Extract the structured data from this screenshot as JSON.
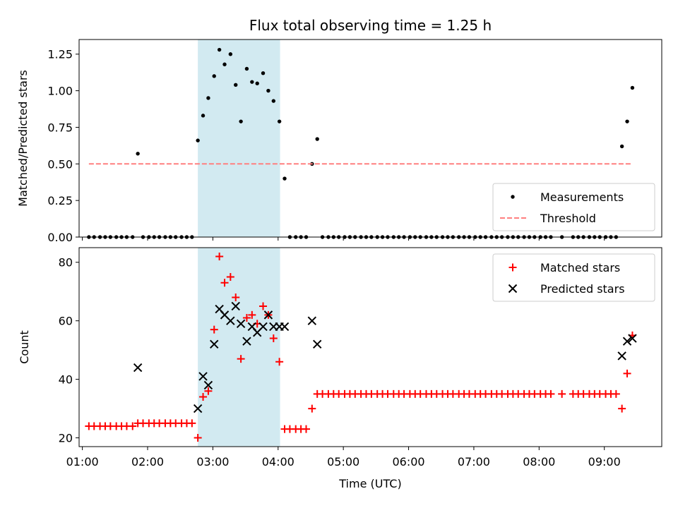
{
  "chart_data": {
    "type": "scatter",
    "title": "Flux total observing time = 1.25 h",
    "xlabel": "Time (UTC)",
    "x_unit": "hours (UTC)",
    "xlim": [
      0.95,
      9.88
    ],
    "x_ticks": [
      1,
      2,
      3,
      4,
      5,
      6,
      7,
      8,
      9
    ],
    "x_tick_labels": [
      "01:00",
      "02:00",
      "03:00",
      "04:00",
      "05:00",
      "06:00",
      "07:00",
      "08:00",
      "09:00"
    ],
    "shaded_region": {
      "x": [
        2.77,
        4.03
      ],
      "color": "#add8e6"
    },
    "panels": [
      {
        "name": "ratio",
        "ylabel": "Matched/Predicted stars",
        "ylim": [
          0,
          1.35
        ],
        "y_ticks": [
          0,
          0.25,
          0.5,
          0.75,
          1.0,
          1.25
        ],
        "y_tick_labels": [
          "0.00",
          "0.25",
          "0.50",
          "0.75",
          "1.00",
          "1.25"
        ],
        "legend": {
          "position": "lower right",
          "entries": [
            "Measurements",
            "Threshold"
          ]
        },
        "series": [
          {
            "name": "Measurements",
            "marker": "dot",
            "color": "#000000",
            "points": [
              [
                1.1,
                0
              ],
              [
                1.18,
                0
              ],
              [
                1.27,
                0
              ],
              [
                1.35,
                0
              ],
              [
                1.43,
                0
              ],
              [
                1.52,
                0
              ],
              [
                1.6,
                0
              ],
              [
                1.68,
                0
              ],
              [
                1.77,
                0
              ],
              [
                1.85,
                0.57
              ],
              [
                1.93,
                0
              ],
              [
                2.02,
                0
              ],
              [
                2.1,
                0
              ],
              [
                2.18,
                0
              ],
              [
                2.27,
                0
              ],
              [
                2.35,
                0
              ],
              [
                2.43,
                0
              ],
              [
                2.52,
                0
              ],
              [
                2.6,
                0
              ],
              [
                2.68,
                0
              ],
              [
                2.77,
                0.66
              ],
              [
                2.85,
                0.83
              ],
              [
                2.93,
                0.95
              ],
              [
                3.02,
                1.1
              ],
              [
                3.1,
                1.28
              ],
              [
                3.18,
                1.18
              ],
              [
                3.27,
                1.25
              ],
              [
                3.35,
                1.04
              ],
              [
                3.43,
                0.79
              ],
              [
                3.52,
                1.15
              ],
              [
                3.6,
                1.06
              ],
              [
                3.68,
                1.05
              ],
              [
                3.77,
                1.12
              ],
              [
                3.85,
                1.0
              ],
              [
                3.93,
                0.93
              ],
              [
                4.02,
                0.79
              ],
              [
                4.1,
                0.4
              ],
              [
                4.18,
                0
              ],
              [
                4.27,
                0
              ],
              [
                4.35,
                0
              ],
              [
                4.43,
                0
              ],
              [
                4.52,
                0.5
              ],
              [
                4.6,
                0.67
              ],
              [
                4.68,
                0
              ],
              [
                4.77,
                0
              ],
              [
                4.85,
                0
              ],
              [
                4.93,
                0
              ],
              [
                5.02,
                0
              ],
              [
                5.1,
                0
              ],
              [
                5.18,
                0
              ],
              [
                5.27,
                0
              ],
              [
                5.35,
                0
              ],
              [
                5.43,
                0
              ],
              [
                5.52,
                0
              ],
              [
                5.6,
                0
              ],
              [
                5.68,
                0
              ],
              [
                5.77,
                0
              ],
              [
                5.85,
                0
              ],
              [
                5.93,
                0
              ],
              [
                6.02,
                0
              ],
              [
                6.1,
                0
              ],
              [
                6.18,
                0
              ],
              [
                6.27,
                0
              ],
              [
                6.35,
                0
              ],
              [
                6.43,
                0
              ],
              [
                6.52,
                0
              ],
              [
                6.6,
                0
              ],
              [
                6.68,
                0
              ],
              [
                6.77,
                0
              ],
              [
                6.85,
                0
              ],
              [
                6.93,
                0
              ],
              [
                7.02,
                0
              ],
              [
                7.1,
                0
              ],
              [
                7.18,
                0
              ],
              [
                7.27,
                0
              ],
              [
                7.35,
                0
              ],
              [
                7.43,
                0
              ],
              [
                7.52,
                0
              ],
              [
                7.6,
                0
              ],
              [
                7.68,
                0
              ],
              [
                7.77,
                0
              ],
              [
                7.85,
                0
              ],
              [
                7.93,
                0
              ],
              [
                8.02,
                0
              ],
              [
                8.1,
                0
              ],
              [
                8.18,
                0
              ],
              [
                8.35,
                0
              ],
              [
                8.52,
                0
              ],
              [
                8.6,
                0
              ],
              [
                8.68,
                0
              ],
              [
                8.77,
                0
              ],
              [
                8.85,
                0
              ],
              [
                8.93,
                0
              ],
              [
                9.02,
                0
              ],
              [
                9.1,
                0
              ],
              [
                9.18,
                0
              ],
              [
                9.27,
                0.62
              ],
              [
                9.35,
                0.79
              ],
              [
                9.43,
                1.02
              ]
            ]
          },
          {
            "name": "Threshold",
            "marker": "dashed-line",
            "color": "#ff7f7f",
            "points": [
              [
                1.1,
                0.5
              ],
              [
                9.43,
                0.5
              ]
            ]
          }
        ]
      },
      {
        "name": "counts",
        "ylabel": "Count",
        "ylim": [
          17,
          85
        ],
        "y_ticks": [
          20,
          40,
          60,
          80
        ],
        "y_tick_labels": [
          "20",
          "40",
          "60",
          "80"
        ],
        "legend": {
          "position": "upper right",
          "entries": [
            "Matched stars",
            "Predicted stars"
          ]
        },
        "series": [
          {
            "name": "Matched stars",
            "marker": "plus",
            "color": "#ff0000",
            "points": [
              [
                1.1,
                24
              ],
              [
                1.18,
                24
              ],
              [
                1.27,
                24
              ],
              [
                1.35,
                24
              ],
              [
                1.43,
                24
              ],
              [
                1.52,
                24
              ],
              [
                1.6,
                24
              ],
              [
                1.68,
                24
              ],
              [
                1.77,
                24
              ],
              [
                1.85,
                25
              ],
              [
                1.93,
                25
              ],
              [
                2.02,
                25
              ],
              [
                2.1,
                25
              ],
              [
                2.18,
                25
              ],
              [
                2.27,
                25
              ],
              [
                2.35,
                25
              ],
              [
                2.43,
                25
              ],
              [
                2.52,
                25
              ],
              [
                2.6,
                25
              ],
              [
                2.68,
                25
              ],
              [
                2.77,
                20
              ],
              [
                2.85,
                34
              ],
              [
                2.93,
                36
              ],
              [
                3.02,
                57
              ],
              [
                3.1,
                82
              ],
              [
                3.18,
                73
              ],
              [
                3.27,
                75
              ],
              [
                3.35,
                68
              ],
              [
                3.43,
                47
              ],
              [
                3.52,
                61
              ],
              [
                3.6,
                62
              ],
              [
                3.68,
                59
              ],
              [
                3.77,
                65
              ],
              [
                3.85,
                62
              ],
              [
                3.93,
                54
              ],
              [
                4.02,
                46
              ],
              [
                4.1,
                23
              ],
              [
                4.18,
                23
              ],
              [
                4.27,
                23
              ],
              [
                4.35,
                23
              ],
              [
                4.43,
                23
              ],
              [
                4.52,
                30
              ],
              [
                4.6,
                35
              ],
              [
                4.68,
                35
              ],
              [
                4.77,
                35
              ],
              [
                4.85,
                35
              ],
              [
                4.93,
                35
              ],
              [
                5.02,
                35
              ],
              [
                5.1,
                35
              ],
              [
                5.18,
                35
              ],
              [
                5.27,
                35
              ],
              [
                5.35,
                35
              ],
              [
                5.43,
                35
              ],
              [
                5.52,
                35
              ],
              [
                5.6,
                35
              ],
              [
                5.68,
                35
              ],
              [
                5.77,
                35
              ],
              [
                5.85,
                35
              ],
              [
                5.93,
                35
              ],
              [
                6.02,
                35
              ],
              [
                6.1,
                35
              ],
              [
                6.18,
                35
              ],
              [
                6.27,
                35
              ],
              [
                6.35,
                35
              ],
              [
                6.43,
                35
              ],
              [
                6.52,
                35
              ],
              [
                6.6,
                35
              ],
              [
                6.68,
                35
              ],
              [
                6.77,
                35
              ],
              [
                6.85,
                35
              ],
              [
                6.93,
                35
              ],
              [
                7.02,
                35
              ],
              [
                7.1,
                35
              ],
              [
                7.18,
                35
              ],
              [
                7.27,
                35
              ],
              [
                7.35,
                35
              ],
              [
                7.43,
                35
              ],
              [
                7.52,
                35
              ],
              [
                7.6,
                35
              ],
              [
                7.68,
                35
              ],
              [
                7.77,
                35
              ],
              [
                7.85,
                35
              ],
              [
                7.93,
                35
              ],
              [
                8.02,
                35
              ],
              [
                8.1,
                35
              ],
              [
                8.18,
                35
              ],
              [
                8.35,
                35
              ],
              [
                8.52,
                35
              ],
              [
                8.6,
                35
              ],
              [
                8.68,
                35
              ],
              [
                8.77,
                35
              ],
              [
                8.85,
                35
              ],
              [
                8.93,
                35
              ],
              [
                9.02,
                35
              ],
              [
                9.1,
                35
              ],
              [
                9.18,
                35
              ],
              [
                9.27,
                30
              ],
              [
                9.35,
                42
              ],
              [
                9.43,
                55
              ]
            ]
          },
          {
            "name": "Predicted stars",
            "marker": "x",
            "color": "#000000",
            "points": [
              [
                1.85,
                44
              ],
              [
                2.77,
                30
              ],
              [
                2.85,
                41
              ],
              [
                2.93,
                38
              ],
              [
                3.02,
                52
              ],
              [
                3.1,
                64
              ],
              [
                3.18,
                62
              ],
              [
                3.27,
                60
              ],
              [
                3.35,
                65
              ],
              [
                3.43,
                59
              ],
              [
                3.52,
                53
              ],
              [
                3.6,
                58
              ],
              [
                3.68,
                56
              ],
              [
                3.77,
                58
              ],
              [
                3.85,
                62
              ],
              [
                3.93,
                58
              ],
              [
                4.02,
                58
              ],
              [
                4.1,
                58
              ],
              [
                4.52,
                60
              ],
              [
                4.6,
                52
              ],
              [
                9.27,
                48
              ],
              [
                9.35,
                53
              ],
              [
                9.43,
                54
              ]
            ]
          }
        ]
      }
    ]
  }
}
